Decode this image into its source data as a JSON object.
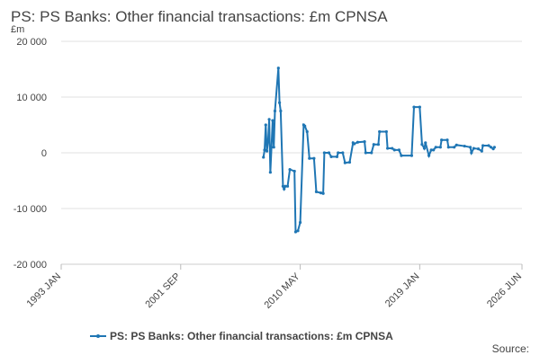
{
  "chart_data": {
    "type": "line",
    "title": "PS: PS Banks: Other financial transactions: £m CPNSA",
    "y_label": "£m",
    "source": "Source:",
    "xlim": [
      "1993 JAN",
      "2026 JUN"
    ],
    "xticks": [
      "1993 JAN",
      "2001 SEP",
      "2010 MAY",
      "2019 JAN",
      "2026 JUN"
    ],
    "ylim": [
      -20000,
      20000
    ],
    "yticks": [
      {
        "value": -20000,
        "label": "-20 000"
      },
      {
        "value": -10000,
        "label": "-10 000"
      },
      0,
      {
        "value": 10000,
        "label": "10 000"
      },
      {
        "value": 20000,
        "label": "20 000"
      }
    ],
    "grid": true,
    "legend": "bottom",
    "x": [
      "2007 SEP",
      "2007 OCT",
      "2007 NOV",
      "2007 DEC",
      "2008 JAN",
      "2008 FEB",
      "2008 MAR",
      "2008 APR",
      "2008 MAY",
      "2008 JUN",
      "2008 JUL",
      "2008 OCT",
      "2008 NOV",
      "2008 DEC",
      "2009 FEB",
      "2009 MAR",
      "2009 APR",
      "2009 JUN",
      "2009 AUG",
      "2009 DEC",
      "2010 JAN",
      "2010 MAR",
      "2010 MAY",
      "2010 AUG",
      "2010 SEP",
      "2010 NOV",
      "2011 JAN",
      "2011 MAY",
      "2011 JUL",
      "2011 NOV",
      "2012 JAN",
      "2012 FEB",
      "2012 JUN",
      "2012 AUG",
      "2013 JAN",
      "2013 FEB",
      "2013 JUN",
      "2013 AUG",
      "2013 DEC",
      "2014 MAR",
      "2014 APR",
      "2014 JUL",
      "2015 JAN",
      "2015 FEB",
      "2015 JUL",
      "2015 SEP",
      "2016 JAN",
      "2016 FEB",
      "2016 AUG",
      "2016 SEP",
      "2017 JAN",
      "2017 MAR",
      "2017 JUL",
      "2017 SEP",
      "2018 JUN",
      "2018 AUG",
      "2019 JAN",
      "2019 MAR",
      "2019 MAY",
      "2019 JUN",
      "2019 SEP",
      "2019 NOV",
      "2020 JAN",
      "2020 MAR",
      "2020 JUL",
      "2020 AUG",
      "2021 JAN",
      "2021 FEB",
      "2021 JUL",
      "2021 SEP",
      "2022 APR",
      "2022 SEP",
      "2022 OCT",
      "2022 DEC",
      "2023 APR",
      "2023 JUL",
      "2023 AUG",
      "2024 JAN",
      "2024 MAR",
      "2024 MAY",
      "2024 JUN"
    ],
    "series": [
      {
        "name": "PS: PS Banks: Other financial transactions: £m CPNSA",
        "color": "#1f76b4",
        "values": [
          -800,
          500,
          5000,
          300,
          2000,
          6000,
          -3500,
          1000,
          5800,
          1000,
          7500,
          15200,
          9000,
          7500,
          -6000,
          -6500,
          -6000,
          -6000,
          -3000,
          -3300,
          -14200,
          -14000,
          -12500,
          5000,
          4800,
          3800,
          -1000,
          -1000,
          -7000,
          -7200,
          -7300,
          0,
          0,
          -700,
          -700,
          0,
          0,
          -1800,
          -1700,
          1800,
          1600,
          1900,
          2000,
          0,
          0,
          1500,
          1500,
          3800,
          3800,
          800,
          800,
          500,
          500,
          -500,
          -500,
          8200,
          8200,
          1500,
          800,
          1800,
          -500,
          500,
          500,
          1000,
          1000,
          2300,
          2300,
          1000,
          1000,
          1400,
          1200,
          1000,
          0,
          800,
          700,
          300,
          1300,
          1300,
          1000,
          700,
          1000
        ]
      }
    ]
  }
}
